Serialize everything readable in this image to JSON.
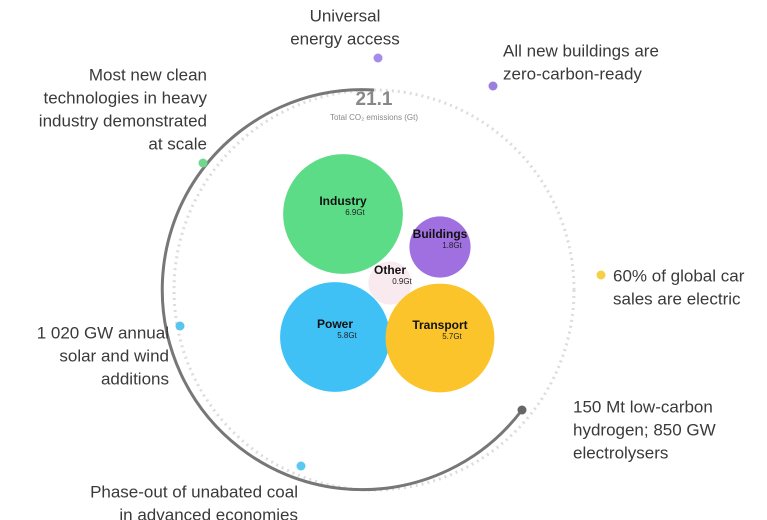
{
  "chart_data": {
    "type": "bubble",
    "total": 21.1,
    "total_label": "Total CO₂ emissions (Gt)",
    "categories": [
      "Industry",
      "Buildings",
      "Other",
      "Power",
      "Transport"
    ],
    "values": [
      6.9,
      1.8,
      0.9,
      5.8,
      5.7
    ],
    "value_labels": [
      "6.9Gt",
      "1.8Gt",
      "0.9Gt",
      "5.8Gt",
      "5.7Gt"
    ],
    "colors": [
      "#5ddc87",
      "#a070e0",
      "#f3d6e0",
      "#3fc1f5",
      "#fbc42a"
    ],
    "annotations": [
      {
        "lines": [
          "Universal",
          "energy access"
        ],
        "color": "#a68be8"
      },
      {
        "lines": [
          "All new buildings are",
          "zero-carbon-ready"
        ],
        "color": "#9a7ee0"
      },
      {
        "lines": [
          "Most new clean",
          "technologies in heavy",
          "industry demonstrated",
          "at scale"
        ],
        "color": "#6ed88e"
      },
      {
        "lines": [
          "60% of global car",
          "sales are electric"
        ],
        "color": "#f7cf45"
      },
      {
        "lines": [
          "1 020 GW annual",
          "solar and wind",
          "additions"
        ],
        "color": "#58c4f0"
      },
      {
        "lines": [
          "150 Mt low-carbon",
          "hydrogen; 850 GW",
          "electrolysers"
        ],
        "color": "#666666"
      },
      {
        "lines": [
          "Phase-out of unabated coal",
          "in advanced economies"
        ],
        "color": "#5cc8f2"
      }
    ]
  }
}
